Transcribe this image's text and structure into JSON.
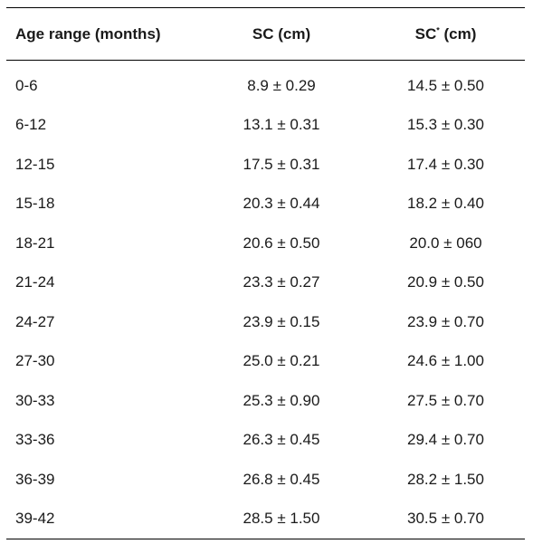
{
  "table": {
    "headers": {
      "col1": "Age range (months)",
      "col2": "SC (cm)",
      "col3_main": "SC",
      "col3_sup": "*",
      "col3_unit": " (cm)"
    },
    "rows": [
      {
        "age": "0-6",
        "sc": "8.9 ± 0.29",
        "sc_star": "14.5 ± 0.50"
      },
      {
        "age": "6-12",
        "sc": "13.1 ± 0.31",
        "sc_star": "15.3 ± 0.30"
      },
      {
        "age": "12-15",
        "sc": "17.5 ± 0.31",
        "sc_star": "17.4 ± 0.30"
      },
      {
        "age": "15-18",
        "sc": "20.3 ± 0.44",
        "sc_star": "18.2 ± 0.40"
      },
      {
        "age": "18-21",
        "sc": "20.6 ± 0.50",
        "sc_star": "20.0 ± 060"
      },
      {
        "age": "21-24",
        "sc": "23.3 ± 0.27",
        "sc_star": "20.9 ± 0.50"
      },
      {
        "age": "24-27",
        "sc": "23.9 ± 0.15",
        "sc_star": "23.9 ± 0.70"
      },
      {
        "age": "27-30",
        "sc": "25.0 ± 0.21",
        "sc_star": "24.6 ± 1.00"
      },
      {
        "age": "30-33",
        "sc": "25.3 ± 0.90",
        "sc_star": "27.5 ± 0.70"
      },
      {
        "age": "33-36",
        "sc": "26.3 ± 0.45",
        "sc_star": "29.4 ± 0.70"
      },
      {
        "age": "36-39",
        "sc": "26.8 ± 0.45",
        "sc_star": "28.2 ± 1.50"
      },
      {
        "age": "39-42",
        "sc": "28.5 ± 1.50",
        "sc_star": "30.5 ± 0.70"
      }
    ]
  }
}
